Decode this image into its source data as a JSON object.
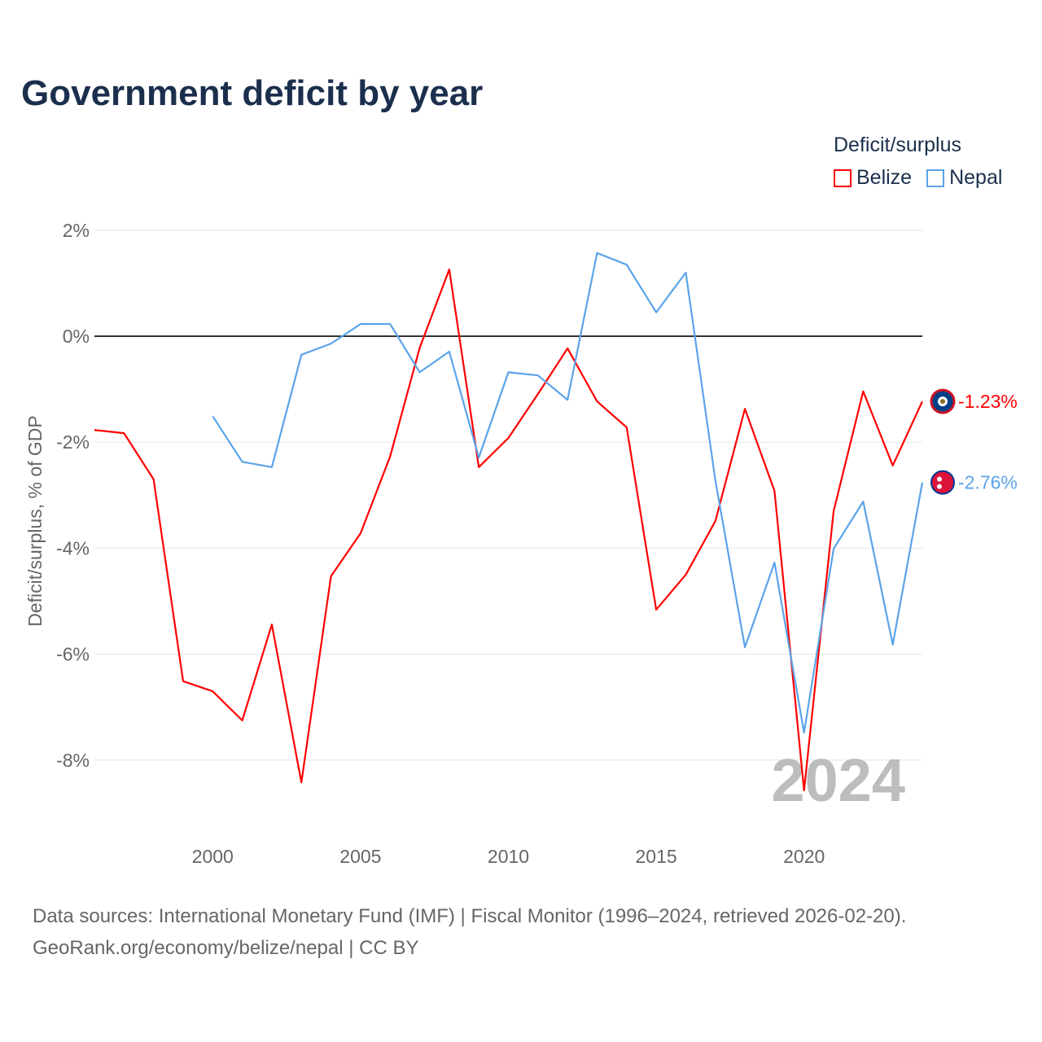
{
  "title": "Government deficit by year",
  "legend": {
    "title": "Deficit/surplus",
    "items": [
      {
        "name": "Belize",
        "color": "#ff0000"
      },
      {
        "name": "Nepal",
        "color": "#5ba3e8"
      }
    ]
  },
  "source": {
    "line1": "Data sources: International Monetary Fund (IMF) | Fiscal Monitor (1996–2024, retrieved 2026-02-20).",
    "line2": "GeoRank.org/economy/belize/nepal | CC BY"
  },
  "chart_data": {
    "type": "line",
    "title": "Government deficit by year",
    "xlabel": "",
    "ylabel": "Deficit/surplus, % of GDP",
    "xlim": [
      1996,
      2024
    ],
    "ylim": [
      -9,
      2
    ],
    "xticks": [
      2000,
      2005,
      2010,
      2015,
      2020
    ],
    "yticks": [
      2,
      0,
      -2,
      -4,
      -6,
      -8
    ],
    "ytick_labels": [
      "2%",
      "0%",
      "-2%",
      "-4%",
      "-6%",
      "-8%"
    ],
    "watermark_year": "2024",
    "series": [
      {
        "name": "Belize",
        "color": "#ff0000",
        "end_label": "-1.23%",
        "x": [
          1996,
          1997,
          1998,
          1999,
          2000,
          2001,
          2002,
          2003,
          2004,
          2005,
          2006,
          2007,
          2008,
          2009,
          2010,
          2011,
          2012,
          2013,
          2014,
          2015,
          2016,
          2017,
          2018,
          2019,
          2020,
          2021,
          2022,
          2023,
          2024
        ],
        "values": [
          -1.77,
          -1.83,
          -2.7,
          -6.51,
          -6.7,
          -7.25,
          -5.44,
          -8.42,
          -4.53,
          -3.72,
          -2.27,
          -0.22,
          1.26,
          -2.47,
          -1.92,
          -1.09,
          -0.23,
          -1.23,
          -1.72,
          -5.16,
          -4.5,
          -3.49,
          -1.37,
          -2.92,
          -8.57,
          -3.3,
          -1.04,
          -2.44,
          -1.23
        ]
      },
      {
        "name": "Nepal",
        "color": "#5ba3e8",
        "end_label": "-2.76%",
        "x": [
          2000,
          2001,
          2002,
          2003,
          2004,
          2005,
          2006,
          2007,
          2008,
          2009,
          2010,
          2011,
          2012,
          2013,
          2014,
          2015,
          2016,
          2017,
          2018,
          2019,
          2020,
          2021,
          2022,
          2023,
          2024
        ],
        "values": [
          -1.51,
          -2.37,
          -2.47,
          -0.35,
          -0.14,
          0.23,
          0.23,
          -0.68,
          -0.29,
          -2.29,
          -0.68,
          -0.74,
          -1.2,
          1.57,
          1.35,
          0.45,
          1.2,
          -2.72,
          -5.87,
          -4.27,
          -7.48,
          -4.01,
          -3.12,
          -5.82,
          -2.76
        ]
      }
    ]
  }
}
